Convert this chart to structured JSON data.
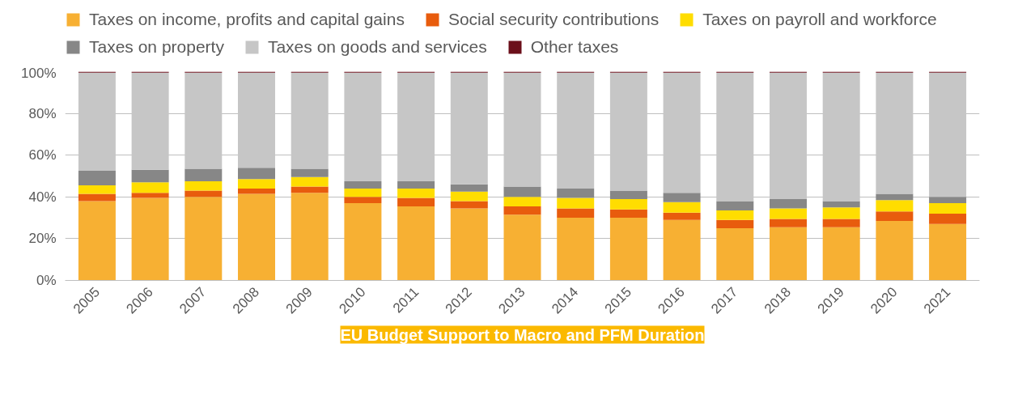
{
  "chart_data": {
    "type": "bar",
    "stacked": true,
    "categories": [
      "2005",
      "2006",
      "2007",
      "2008",
      "2009",
      "2010",
      "2011",
      "2012",
      "2013",
      "2014",
      "2015",
      "2016",
      "2017",
      "2018",
      "2019",
      "2020",
      "2021"
    ],
    "series": [
      {
        "name": "Taxes on income, profits and capital gains",
        "color": "#f7b033",
        "values": [
          38,
          39.5,
          40,
          41.5,
          42,
          37,
          35.5,
          34.5,
          31.5,
          30,
          30,
          29,
          25,
          25.5,
          25.5,
          28.5,
          27
        ]
      },
      {
        "name": "Social security contributions",
        "color": "#e85c0d",
        "values": [
          3.5,
          2.5,
          3,
          2.5,
          3,
          3,
          4,
          3.5,
          4,
          4.5,
          4,
          3.5,
          4,
          4,
          4,
          4.5,
          5
        ]
      },
      {
        "name": "Taxes on payroll and workforce",
        "color": "#ffdd00",
        "values": [
          4,
          5,
          4.5,
          4.5,
          4.5,
          4,
          4.5,
          4.5,
          4.5,
          5,
          5,
          5,
          4.5,
          5,
          5.5,
          5.5,
          5
        ]
      },
      {
        "name": "Taxes on property",
        "color": "#878787",
        "values": [
          7,
          6,
          6,
          5.5,
          4,
          3.5,
          3.5,
          3.5,
          5,
          4.5,
          4,
          4.5,
          4.5,
          4.5,
          3,
          3,
          3
        ]
      },
      {
        "name": "Taxes on goods and services",
        "color": "#c6c6c6",
        "values": [
          47,
          46.5,
          46,
          45.5,
          46,
          52,
          52,
          53.5,
          54.5,
          55.5,
          56.5,
          57.5,
          61.5,
          60.5,
          61.5,
          58,
          59.5
        ]
      },
      {
        "name": "Other taxes",
        "color": "#6b0f1a",
        "values": [
          0.5,
          0.5,
          0.5,
          0.5,
          0.5,
          0.5,
          0.5,
          0.5,
          0.5,
          0.5,
          0.5,
          0.5,
          0.5,
          0.5,
          0.5,
          0.5,
          0.5
        ]
      }
    ],
    "ylim": [
      0,
      100
    ],
    "yticks": [
      {
        "value": 0,
        "label": "0%"
      },
      {
        "value": 20,
        "label": "20%"
      },
      {
        "value": 40,
        "label": "40%"
      },
      {
        "value": 60,
        "label": "60%"
      },
      {
        "value": 80,
        "label": "80%"
      },
      {
        "value": 100,
        "label": "100%"
      }
    ],
    "grid": "y",
    "legend": "top",
    "annotations": [
      "EU Budget Support to Macro and PFM Duration"
    ]
  }
}
